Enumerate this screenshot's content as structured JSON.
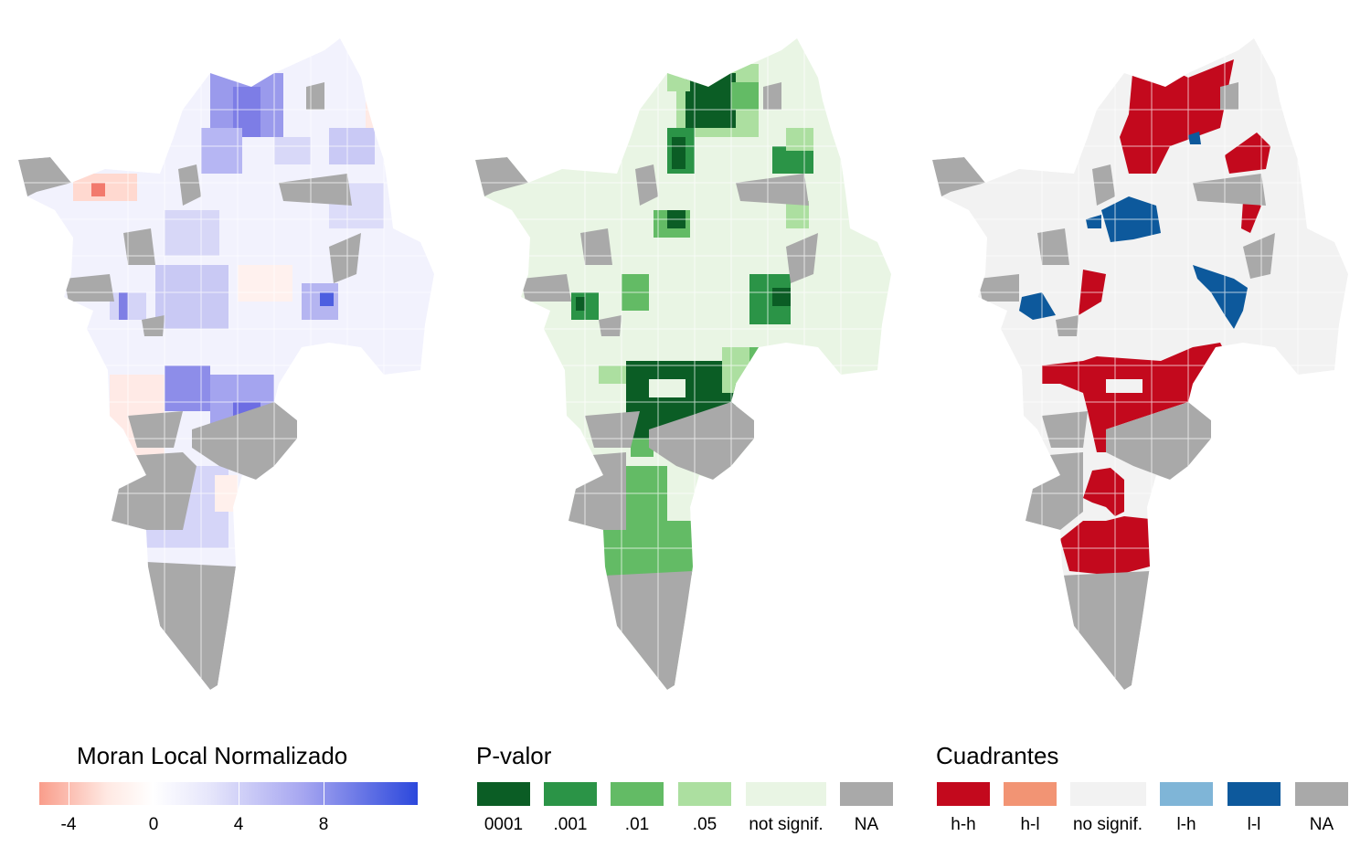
{
  "maps": {
    "moran": {
      "name": "Moran Local Normalizado",
      "gradient_colors": [
        "#f99d8b",
        "#ffffff",
        "#2c48dc"
      ],
      "ticks": [
        "-4",
        "0",
        "4",
        "8"
      ]
    },
    "pvalor": {
      "name": "P-valor",
      "categories": [
        {
          "label": "0001",
          "color": "#0b5d25"
        },
        {
          "label": ".001",
          "color": "#2b9447"
        },
        {
          "label": ".01",
          "color": "#63bb65"
        },
        {
          "label": ".05",
          "color": "#acdfa0"
        },
        {
          "label": "not signif.",
          "color": "#e9f5e4"
        },
        {
          "label": "NA",
          "color": "#a9a9a9"
        }
      ]
    },
    "cuadrantes": {
      "name": "Cuadrantes",
      "categories": [
        {
          "label": "h-h",
          "color": "#c3091d"
        },
        {
          "label": "h-l",
          "color": "#f29474"
        },
        {
          "label": "no signif.",
          "color": "#f2f2f2"
        },
        {
          "label": "l-h",
          "color": "#7fb5d7"
        },
        {
          "label": "l-l",
          "color": "#0d599c"
        },
        {
          "label": "NA",
          "color": "#a9a9a9"
        }
      ]
    }
  }
}
